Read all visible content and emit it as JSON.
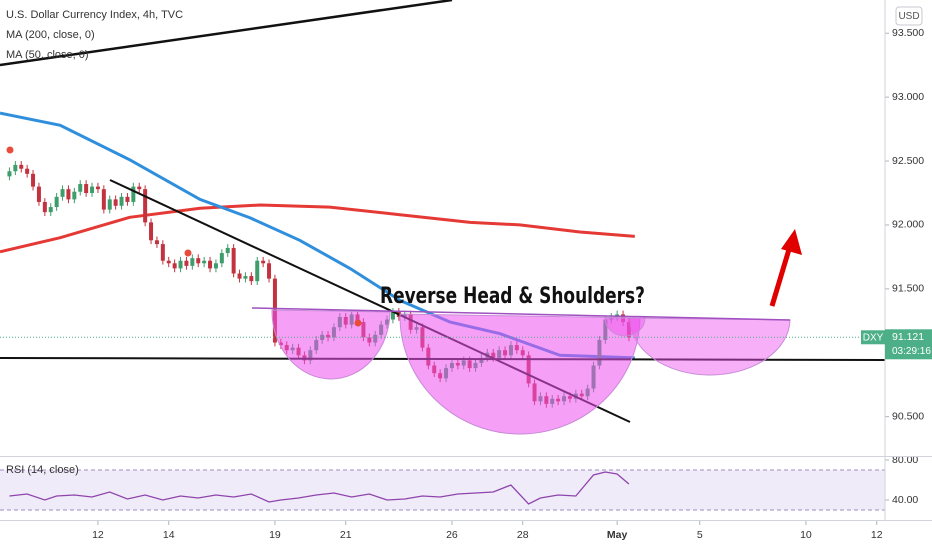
{
  "chart_data": [
    {
      "type": "candlestick",
      "title": "U.S. Dollar Currency Index, 4h, TVC",
      "currency": "USD",
      "annotation": "Reverse Head & Shoulders?",
      "xlim": [
        -1.6,
        148.4
      ],
      "xticks": [
        {
          "value": 15,
          "label": "12"
        },
        {
          "value": 27,
          "label": "14"
        },
        {
          "value": 45,
          "label": "19"
        },
        {
          "value": 57,
          "label": "21"
        },
        {
          "value": 75,
          "label": "26"
        },
        {
          "value": 87,
          "label": "28"
        },
        {
          "value": 103,
          "label": "May"
        },
        {
          "value": 117,
          "label": "5"
        },
        {
          "value": 135,
          "label": "10"
        },
        {
          "value": 147,
          "label": "12"
        }
      ],
      "ylim": [
        90.2,
        93.76
      ],
      "yticks": [
        {
          "value": 93.5,
          "label": "93.500"
        },
        {
          "value": 93,
          "label": "93.000"
        },
        {
          "value": 92.5,
          "label": "92.500"
        },
        {
          "value": 92,
          "label": "92.000"
        },
        {
          "value": 91.5,
          "label": "91.500"
        },
        {
          "value": 90.5,
          "label": "90.500"
        }
      ],
      "up_color": "#3f9c6b",
      "down_color": "#c2323f",
      "open": [
        92.38,
        92.42,
        92.47,
        92.44,
        92.4,
        92.3,
        92.18,
        92.1,
        92.14,
        92.22,
        92.28,
        92.2,
        92.26,
        92.32,
        92.25,
        92.3,
        92.28,
        92.12,
        92.2,
        92.15,
        92.22,
        92.18,
        92.3,
        92.28,
        92.02,
        91.88,
        91.85,
        91.72,
        91.7,
        91.66,
        91.72,
        91.68,
        91.74,
        91.7,
        91.72,
        91.66,
        91.7,
        91.78,
        91.82,
        91.62,
        91.58,
        91.6,
        91.56,
        91.72,
        91.7,
        91.58,
        91.08,
        91.06,
        91.02,
        91.04,
        90.98,
        90.94,
        91.02,
        91.1,
        91.14,
        91.12,
        91.2,
        91.28,
        91.22,
        91.3,
        91.24,
        91.12,
        91.08,
        91.14,
        91.22,
        91.26,
        91.32,
        91.28,
        91.3,
        91.18,
        91.2,
        91.04,
        90.9,
        90.84,
        90.8,
        90.88,
        90.92,
        90.9,
        90.94,
        90.88,
        90.92,
        90.96,
        91.0,
        90.96,
        91.02,
        90.98,
        91.06,
        91.02,
        90.98,
        90.76,
        90.62,
        90.66,
        90.6,
        90.64,
        90.62,
        90.66,
        90.64,
        90.68,
        90.66,
        90.72,
        90.9,
        91.1,
        91.26,
        91.28,
        91.3,
        91.24
      ],
      "high": [
        92.45,
        92.5,
        92.5,
        92.47,
        92.43,
        92.33,
        92.21,
        92.17,
        92.25,
        92.31,
        92.31,
        92.29,
        92.35,
        92.35,
        92.33,
        92.33,
        92.31,
        92.23,
        92.23,
        92.25,
        92.25,
        92.33,
        92.33,
        92.31,
        92.05,
        91.91,
        91.88,
        91.75,
        91.73,
        91.75,
        91.75,
        91.77,
        91.77,
        91.75,
        91.75,
        91.73,
        91.81,
        91.85,
        91.85,
        91.65,
        91.63,
        91.63,
        91.75,
        91.75,
        91.73,
        91.61,
        91.11,
        91.09,
        91.07,
        91.07,
        91.01,
        91.05,
        91.13,
        91.17,
        91.17,
        91.23,
        91.31,
        91.31,
        91.33,
        91.33,
        91.27,
        91.15,
        91.17,
        91.25,
        91.29,
        91.35,
        91.35,
        91.33,
        91.33,
        91.23,
        91.23,
        91.07,
        90.93,
        90.87,
        90.91,
        90.95,
        90.95,
        90.97,
        90.97,
        90.95,
        90.99,
        91.03,
        91.03,
        91.05,
        91.05,
        91.09,
        91.09,
        91.05,
        91.01,
        90.79,
        90.69,
        90.69,
        90.67,
        90.67,
        90.69,
        90.69,
        90.71,
        90.71,
        90.75,
        90.93,
        91.13,
        91.29,
        91.31,
        91.33,
        91.33,
        91.27
      ],
      "low": [
        92.35,
        92.39,
        92.41,
        92.37,
        92.27,
        92.15,
        92.07,
        92.07,
        92.11,
        92.19,
        92.17,
        92.17,
        92.23,
        92.22,
        92.22,
        92.25,
        92.09,
        92.09,
        92.12,
        92.12,
        92.15,
        92.15,
        92.25,
        91.99,
        91.85,
        91.82,
        91.69,
        91.67,
        91.63,
        91.63,
        91.65,
        91.65,
        91.67,
        91.67,
        91.63,
        91.63,
        91.67,
        91.75,
        91.59,
        91.55,
        91.55,
        91.53,
        91.53,
        91.67,
        91.55,
        91.05,
        91.03,
        90.99,
        90.99,
        90.95,
        90.91,
        90.91,
        90.99,
        91.07,
        91.09,
        91.09,
        91.17,
        91.19,
        91.19,
        91.21,
        91.09,
        91.05,
        91.05,
        91.11,
        91.19,
        91.23,
        91.25,
        91.25,
        91.15,
        91.15,
        91.01,
        90.87,
        90.81,
        90.77,
        90.77,
        90.85,
        90.87,
        90.87,
        90.85,
        90.85,
        90.89,
        90.93,
        90.93,
        90.93,
        90.95,
        90.95,
        90.99,
        90.95,
        90.73,
        90.59,
        90.59,
        90.57,
        90.57,
        90.59,
        90.59,
        90.61,
        90.61,
        90.63,
        90.63,
        90.69,
        90.87,
        91.07,
        91.23,
        91.25,
        91.21,
        91.09
      ],
      "close": [
        92.42,
        92.47,
        92.44,
        92.4,
        92.3,
        92.18,
        92.1,
        92.14,
        92.22,
        92.28,
        92.2,
        92.26,
        92.32,
        92.25,
        92.3,
        92.28,
        92.12,
        92.2,
        92.15,
        92.22,
        92.18,
        92.3,
        92.28,
        92.02,
        91.88,
        91.85,
        91.72,
        91.7,
        91.66,
        91.72,
        91.68,
        91.74,
        91.7,
        91.72,
        91.66,
        91.7,
        91.78,
        91.82,
        91.62,
        91.58,
        91.6,
        91.56,
        91.72,
        91.7,
        91.58,
        91.08,
        91.06,
        91.02,
        91.04,
        90.98,
        90.94,
        91.02,
        91.1,
        91.14,
        91.12,
        91.2,
        91.28,
        91.22,
        91.3,
        91.24,
        91.12,
        91.08,
        91.14,
        91.22,
        91.26,
        91.32,
        91.28,
        91.3,
        91.18,
        91.2,
        91.04,
        90.9,
        90.84,
        90.8,
        90.88,
        90.92,
        90.9,
        90.94,
        90.88,
        90.92,
        90.96,
        91.0,
        90.96,
        91.02,
        90.98,
        91.06,
        91.02,
        90.98,
        90.76,
        90.62,
        90.66,
        90.6,
        90.64,
        90.62,
        90.66,
        90.64,
        90.68,
        90.66,
        90.72,
        90.9,
        91.1,
        91.26,
        91.28,
        91.3,
        91.24,
        91.12
      ],
      "series": [
        {
          "name": "MA (200, close, 0)",
          "color": "#e53935",
          "x": [
            -1.6,
            8.6,
            20.4,
            32.3,
            42.5,
            54.3,
            66.2,
            78.1,
            86.5,
            96.7,
            106
          ],
          "values": [
            91.79,
            91.9,
            92.06,
            92.13,
            92.156,
            92.14,
            92.08,
            92.02,
            92.0,
            91.945,
            91.91
          ]
        },
        {
          "name": "MA (50, close, 0)",
          "color": "#2f8fdc",
          "x": [
            -1.6,
            8.6,
            20.4,
            32.3,
            40.8,
            49.2,
            57.7,
            66.2,
            74.7,
            83.1,
            93.3,
            100.1,
            106
          ],
          "values": [
            92.875,
            92.78,
            92.51,
            92.2,
            92.055,
            91.88,
            91.66,
            91.41,
            91.24,
            91.15,
            90.98,
            90.97,
            90.96
          ]
        }
      ],
      "last_price": {
        "symbol": "DXY",
        "value": 91.121,
        "countdown": "03:29:16",
        "color": "#4caf87"
      }
    },
    {
      "type": "line",
      "title": "RSI (14, close)",
      "color": "#8e44ad",
      "xlim": [
        -1.6,
        148.4
      ],
      "ylim": [
        20,
        85
      ],
      "yticks": [
        {
          "value": 80,
          "label": "80.00"
        },
        {
          "value": 40,
          "label": "40.00"
        }
      ],
      "band": [
        30,
        70
      ],
      "x": [
        0,
        3,
        6,
        8,
        11,
        14,
        17,
        20,
        23,
        26,
        29,
        32,
        35,
        38,
        41,
        44,
        46,
        49,
        52,
        55,
        58,
        61,
        64,
        67,
        70,
        73,
        76,
        79,
        82,
        85,
        88,
        90,
        93,
        96,
        99,
        101,
        103,
        105
      ],
      "values": [
        44,
        46,
        40,
        44,
        45,
        43,
        48,
        41,
        45,
        40,
        44,
        42,
        45,
        43,
        46,
        38,
        40,
        42,
        45,
        47,
        43,
        46,
        40,
        41,
        44,
        43,
        46,
        47,
        48,
        55,
        36,
        42,
        45,
        44,
        65,
        68,
        66,
        56
      ]
    }
  ]
}
